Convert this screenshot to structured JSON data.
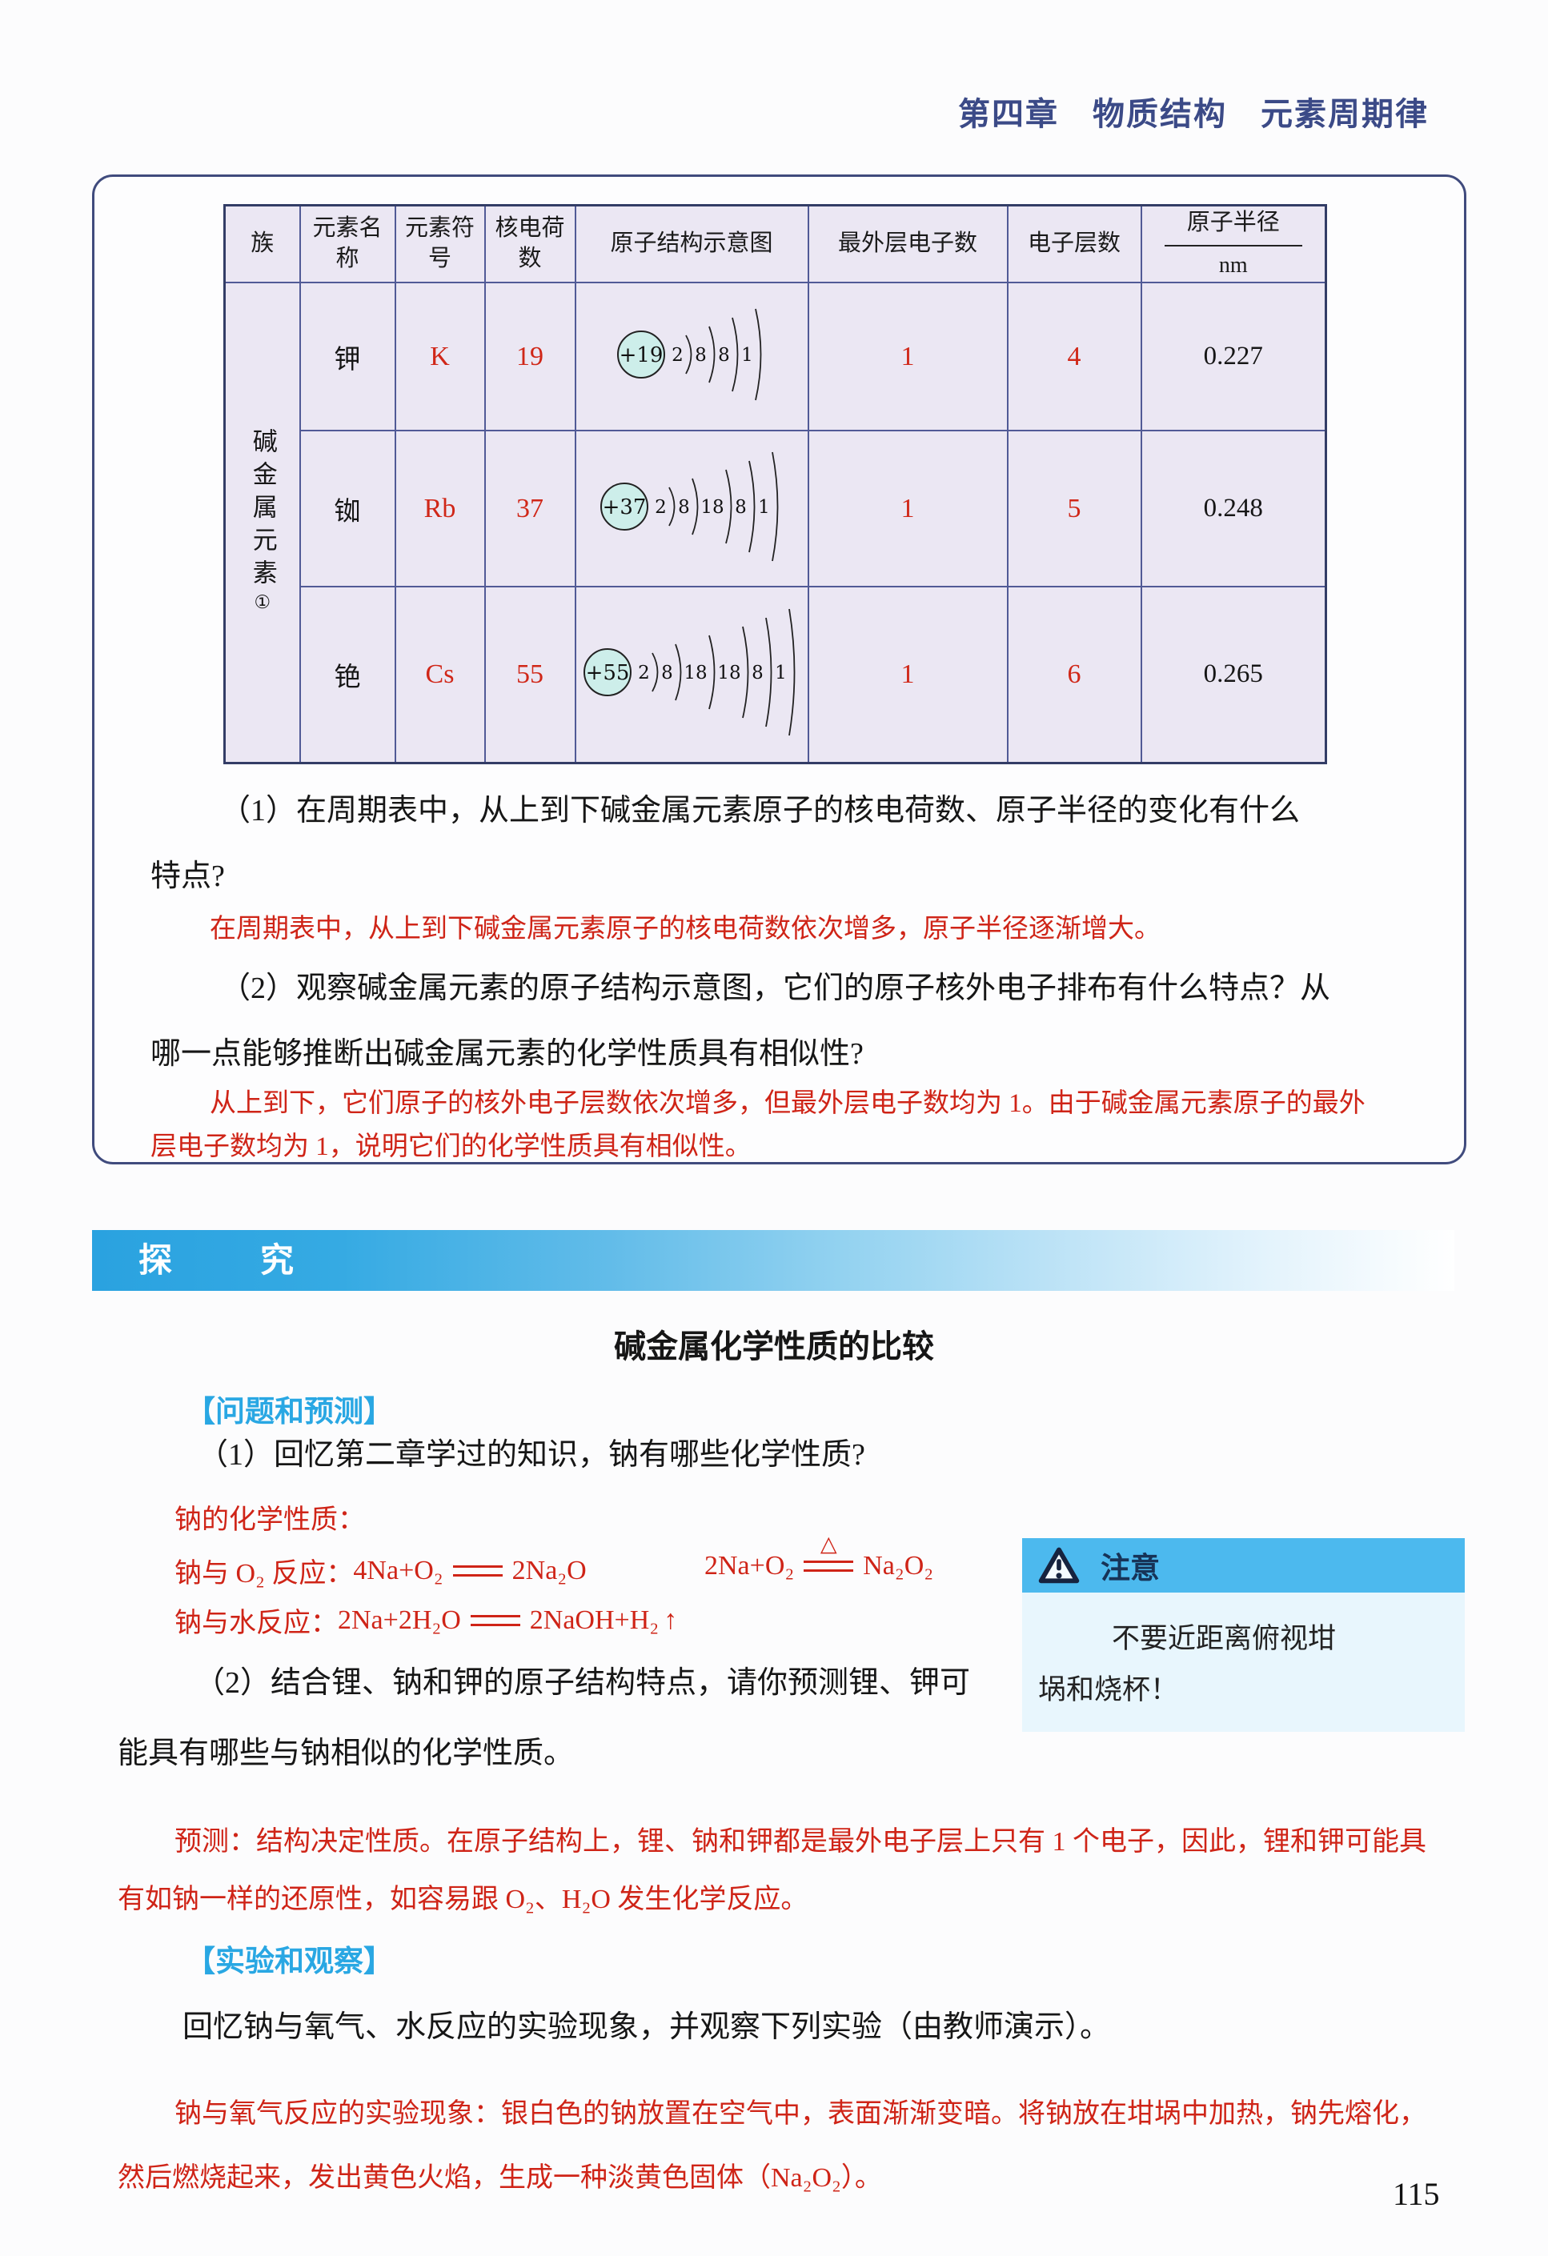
{
  "page": {
    "chapter_header": "第四章　物质结构　元素周期律",
    "page_number": "115"
  },
  "colors": {
    "chapter_navy": "#3b4a87",
    "box_border": "#404b7d",
    "table_cell_bg": "#ebe7f3",
    "table_border": "#515a96",
    "red_text": "#cf2417",
    "cyan_header": "#29a7e3",
    "banner_blue": "#2aa2e0",
    "note_strip_blue": "#4cb9ee",
    "note_body_blue": "#e8f6fd",
    "nucleus_fill": "#cdeeea"
  },
  "table": {
    "headers": {
      "group": "族",
      "element_name": "元素名称",
      "element_symbol": "元素符号",
      "nuclear_charge": "核电荷数",
      "structure_diagram": "原子结构示意图",
      "outer_electrons": "最外层电子数",
      "electron_shells": "电子层数",
      "atomic_radius": "原子半径",
      "radius_unit": "nm"
    },
    "group_label": "碱金属元素",
    "group_footnote": "①",
    "rows": [
      {
        "name": "钾",
        "symbol": "K",
        "charge": "19",
        "nucleus": "+19",
        "shells_list": [
          2,
          8,
          8,
          1
        ],
        "shell_numbers": "2 8 8 1",
        "outer_electrons": "1",
        "shell_count": "4",
        "radius": "0.227"
      },
      {
        "name": "铷",
        "symbol": "Rb",
        "charge": "37",
        "nucleus": "+37",
        "shells_list": [
          2,
          8,
          18,
          8,
          1
        ],
        "shell_numbers": "2 8 18 8 1",
        "outer_electrons": "1",
        "shell_count": "5",
        "radius": "0.248"
      },
      {
        "name": "铯",
        "symbol": "Cs",
        "charge": "55",
        "nucleus": "+55",
        "shells_list": [
          2,
          8,
          18,
          18,
          8,
          1
        ],
        "shell_numbers": "2 8 18 18 8 1",
        "outer_electrons": "1",
        "shell_count": "6",
        "radius": "0.265"
      }
    ]
  },
  "box_qa": {
    "q1_line1": "（1）在周期表中，从上到下碱金属元素原子的核电荷数、原子半径的变化有什么",
    "q1_line2": "特点?",
    "answer1": "在周期表中，从上到下碱金属元素原子的核电荷数依次增多，原子半径逐渐增大。",
    "q2_line1": "（2）观察碱金属元素的原子结构示意图，它们的原子核外电子排布有什么特点？从",
    "q2_line2": "哪一点能够推断出碱金属元素的化学性质具有相似性?",
    "answer2_line1": "从上到下，它们原子的核外电子层数依次增多，但最外层电子数均为 1。由于碱金属元素原子的最外",
    "answer2_line2": "层电子数均为 1，说明它们的化学性质具有相似性。"
  },
  "explore": {
    "banner": "探　究",
    "title": "碱金属化学性质的比较",
    "section1": "【问题和预测】",
    "q1": "（1）回忆第二章学过的知识，钠有哪些化学性质?",
    "na_props_label": "钠的化学性质：",
    "eq1_label": "钠与 O₂ 反应：",
    "eq1_left": "4Na+O₂",
    "eq1_right": "2Na₂O",
    "eq2_left": "2Na+O₂",
    "eq2_condition": "△",
    "eq2_right": "Na₂O₂",
    "eq3_label": "钠与水反应：",
    "eq3_left": "2Na+2H₂O",
    "eq3_right": "2NaOH+H₂",
    "eq3_arrow": "↑",
    "q2_line1": "（2）结合锂、钠和钾的原子结构特点，请你预测锂、钾可",
    "q2_line2": "能具有哪些与钠相似的化学性质。",
    "predict_line1": "预测：结构决定性质。在原子结构上，锂、钠和钾都是最外电子层上只有 1 个电子，因此，锂和钾可能具",
    "predict_line2": "有如钠一样的还原性，如容易跟 O₂、H₂O 发生化学反应。",
    "section2": "【实验和观察】",
    "observe_text": "回忆钠与氧气、水反应的实验现象，并观察下列实验（由教师演示）。",
    "exp_line1": "钠与氧气反应的实验现象：银白色的钠放置在空气中，表面渐渐变暗。将钠放在坩埚中加热，钠先熔化，",
    "exp_line2": "然后燃烧起来，发出黄色火焰，生成一种淡黄色固体（Na₂O₂）。"
  },
  "note": {
    "title": "注意",
    "line1": "不要近距离俯视坩",
    "line2": "埚和烧杯！"
  }
}
